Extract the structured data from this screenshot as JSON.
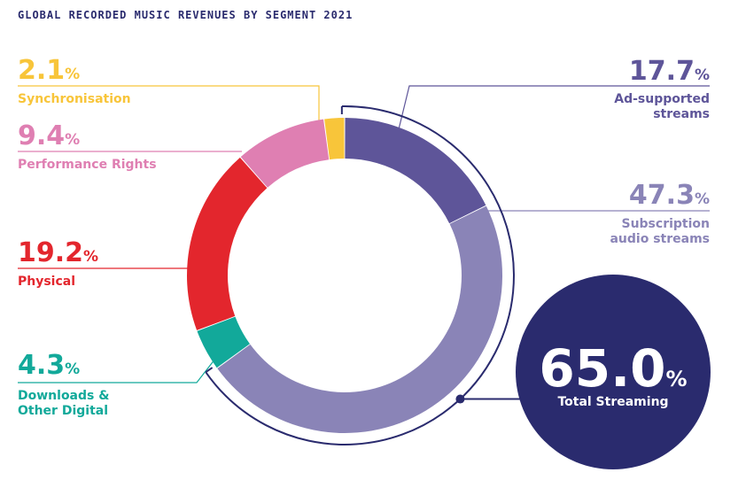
{
  "chart_data": {
    "type": "pie",
    "title": "GLOBAL RECORDED MUSIC REVENUES BY SEGMENT 2021",
    "unit": "%",
    "slices": [
      {
        "label": "Ad-supported streams",
        "lines": [
          "Ad-supported",
          "streams"
        ],
        "value": 17.7,
        "value_text": "17.7",
        "color": "#5e5599"
      },
      {
        "label": "Subscription audio streams",
        "lines": [
          "Subscription",
          "audio streams"
        ],
        "value": 47.3,
        "value_text": "47.3",
        "color": "#8a84b7"
      },
      {
        "label": "Downloads & Other Digital",
        "lines": [
          "Downloads &",
          "Other Digital"
        ],
        "value": 4.3,
        "value_text": "4.3",
        "color": "#12a99a"
      },
      {
        "label": "Physical",
        "lines": [
          "Physical"
        ],
        "value": 19.2,
        "value_text": "19.2",
        "color": "#e3262d"
      },
      {
        "label": "Performance Rights",
        "lines": [
          "Performance Rights"
        ],
        "value": 9.4,
        "value_text": "9.4",
        "color": "#df7fb2"
      },
      {
        "label": "Synchronisation",
        "lines": [
          "Synchronisation"
        ],
        "value": 2.1,
        "value_text": "2.1",
        "color": "#f8c53a"
      }
    ],
    "total_streaming": {
      "value": 65.0,
      "value_text": "65.0",
      "label": "Total Streaming",
      "color": "#2a2b6e"
    }
  }
}
